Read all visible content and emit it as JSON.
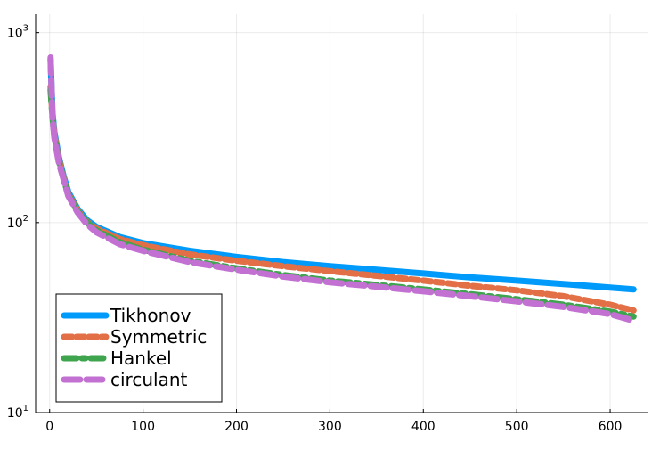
{
  "chart_data": {
    "type": "line",
    "title": "",
    "xlabel": "",
    "ylabel": "",
    "xlim": [
      -15,
      640
    ],
    "ylim": [
      10,
      1250
    ],
    "yscale": "log",
    "xticks": [
      "0",
      "100",
      "200",
      "300",
      "400",
      "500",
      "600"
    ],
    "xtick_values": [
      0,
      100,
      200,
      300,
      400,
      500,
      600
    ],
    "yticks": [
      {
        "value": 10,
        "base": "10",
        "exp": "1"
      },
      {
        "value": 100,
        "base": "10",
        "exp": "2"
      },
      {
        "value": 1000,
        "base": "10",
        "exp": "3"
      }
    ],
    "grid": true,
    "legend_position": "bottom-left",
    "series": [
      {
        "name": "Tikhonov",
        "color": "#009AFA",
        "style": "solid",
        "x": [
          1,
          3,
          5,
          10,
          15,
          20,
          30,
          40,
          50,
          75,
          100,
          150,
          200,
          250,
          300,
          350,
          400,
          450,
          500,
          550,
          600,
          625
        ],
        "y": [
          720,
          380,
          300,
          220,
          175,
          145,
          118,
          103,
          95,
          84,
          78,
          71,
          66,
          62,
          59,
          56.5,
          54,
          51.5,
          49.5,
          47.5,
          45.5,
          44.5
        ]
      },
      {
        "name": "Symmetric",
        "color": "#E26F46",
        "style": "dash",
        "x": [
          1,
          3,
          5,
          10,
          15,
          20,
          30,
          40,
          50,
          75,
          100,
          150,
          200,
          250,
          300,
          350,
          400,
          450,
          500,
          550,
          600,
          625
        ],
        "y": [
          520,
          370,
          290,
          215,
          172,
          142,
          116,
          101,
          93,
          82,
          76,
          68,
          63,
          59,
          55.5,
          52.5,
          49.5,
          46.5,
          44,
          41,
          37,
          34.5
        ]
      },
      {
        "name": "Hankel",
        "color": "#3EA44E",
        "style": "dashdot",
        "x": [
          1,
          3,
          5,
          10,
          15,
          20,
          30,
          40,
          50,
          75,
          100,
          150,
          200,
          250,
          300,
          350,
          400,
          450,
          500,
          550,
          600,
          625
        ],
        "y": [
          500,
          360,
          285,
          210,
          170,
          140,
          115,
          100,
          91,
          79,
          72,
          63,
          57.5,
          53,
          49.5,
          47,
          44.5,
          42,
          39.5,
          37,
          34,
          32
        ]
      },
      {
        "name": "circulant",
        "color": "#C271D2",
        "style": "longdash",
        "x": [
          1,
          3,
          5,
          10,
          15,
          20,
          30,
          40,
          50,
          75,
          100,
          150,
          200,
          250,
          300,
          350,
          400,
          450,
          500,
          550,
          600,
          625
        ],
        "y": [
          740,
          360,
          280,
          205,
          168,
          138,
          113,
          98,
          89,
          77,
          71,
          62,
          56.5,
          52,
          48.5,
          46,
          43.5,
          41,
          38.5,
          36,
          33,
          30.5
        ]
      }
    ]
  }
}
